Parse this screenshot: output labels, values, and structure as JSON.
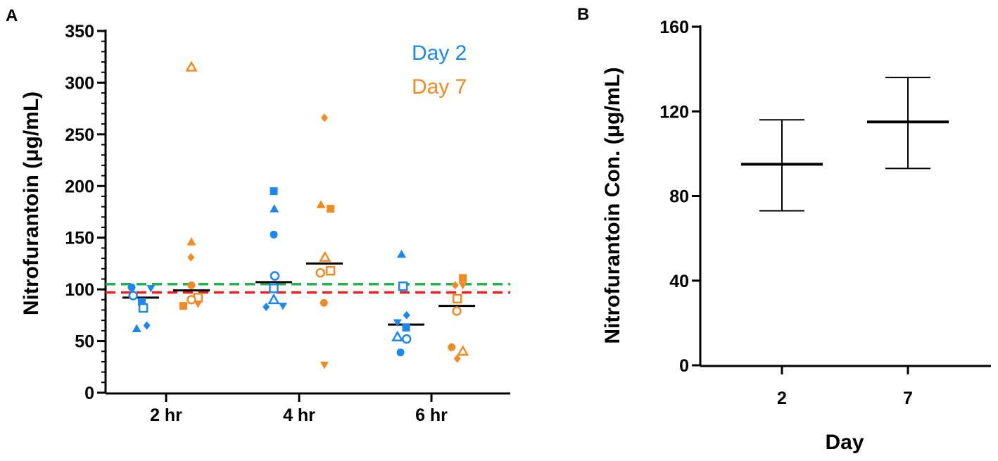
{
  "colors": {
    "day2": "#1b87f0",
    "day7": "#f28a22",
    "green": "#22b14c",
    "red": "#ee2222",
    "axis": "#000000"
  },
  "panel_labels": {
    "a": "A",
    "b": "B"
  },
  "chart_data": [
    {
      "id": "A",
      "type": "scatter",
      "title": "",
      "xlabel": "",
      "ylabel": "Nitrofurantoin (μg/mL)",
      "ylim": [
        0,
        350
      ],
      "yticks": [
        0,
        50,
        100,
        150,
        200,
        250,
        300,
        350
      ],
      "yticks_labels": [
        "0",
        "50",
        "100",
        "150",
        "200",
        "250",
        "300",
        "350"
      ],
      "categories": [
        "2 hr",
        "4 hr",
        "6 hr"
      ],
      "legend": [
        "Day 2",
        "Day 7"
      ],
      "reference_lines": [
        {
          "name": "green",
          "y": 105,
          "style": "dashed"
        },
        {
          "name": "red",
          "y": 97,
          "style": "dashed"
        }
      ],
      "series": [
        {
          "name": "Day 2",
          "means": [
            92,
            107,
            66
          ],
          "points": [
            {
              "cat": 0,
              "y": 102,
              "m": "circle",
              "o": -0.18
            },
            {
              "cat": 0,
              "y": 94,
              "m": "circle-open",
              "o": -0.15
            },
            {
              "cat": 0,
              "y": 62,
              "m": "triangle",
              "o": -0.08
            },
            {
              "cat": 0,
              "y": 88,
              "m": "square",
              "o": 0.02
            },
            {
              "cat": 0,
              "y": 82,
              "m": "square-open",
              "o": 0.05
            },
            {
              "cat": 0,
              "y": 65,
              "m": "diamond",
              "o": 0.12
            },
            {
              "cat": 0,
              "y": 101,
              "m": "triangle-down",
              "o": 0.2
            },
            {
              "cat": 1,
              "y": 195,
              "m": "square",
              "o": 0.0
            },
            {
              "cat": 1,
              "y": 178,
              "m": "triangle",
              "o": 0.01
            },
            {
              "cat": 1,
              "y": 153,
              "m": "circle",
              "o": 0.0
            },
            {
              "cat": 1,
              "y": 113,
              "m": "circle-open",
              "o": 0.02
            },
            {
              "cat": 1,
              "y": 101,
              "m": "square-open",
              "o": 0.0
            },
            {
              "cat": 1,
              "y": 90,
              "m": "triangle-open",
              "o": 0.0
            },
            {
              "cat": 1,
              "y": 83,
              "m": "diamond",
              "o": -0.15
            },
            {
              "cat": 1,
              "y": 84,
              "m": "triangle-down",
              "o": 0.18
            },
            {
              "cat": 2,
              "y": 134,
              "m": "triangle",
              "o": -0.09
            },
            {
              "cat": 2,
              "y": 103,
              "m": "square-open",
              "o": -0.06
            },
            {
              "cat": 2,
              "y": 75,
              "m": "diamond",
              "o": 0.01
            },
            {
              "cat": 2,
              "y": 68,
              "m": "triangle-down",
              "o": -0.17
            },
            {
              "cat": 2,
              "y": 63,
              "m": "square",
              "o": 0.0
            },
            {
              "cat": 2,
              "y": 54,
              "m": "triangle-open",
              "o": -0.17
            },
            {
              "cat": 2,
              "y": 52,
              "m": "circle-open",
              "o": 0.01
            },
            {
              "cat": 2,
              "y": 39,
              "m": "circle",
              "o": -0.11
            }
          ]
        },
        {
          "name": "Day 7",
          "means": [
            99,
            125,
            84
          ],
          "points": [
            {
              "cat": 0,
              "y": 315,
              "m": "triangle-open",
              "o": 0.0
            },
            {
              "cat": 0,
              "y": 146,
              "m": "triangle",
              "o": 0.0
            },
            {
              "cat": 0,
              "y": 131,
              "m": "diamond",
              "o": -0.01
            },
            {
              "cat": 0,
              "y": 104,
              "m": "circle",
              "o": 0.0
            },
            {
              "cat": 0,
              "y": 92,
              "m": "square-open",
              "o": 0.13
            },
            {
              "cat": 0,
              "y": 90,
              "m": "circle-open",
              "o": 0.0
            },
            {
              "cat": 0,
              "y": 84,
              "m": "square",
              "o": -0.16
            },
            {
              "cat": 0,
              "y": 86,
              "m": "triangle-down",
              "o": 0.13
            },
            {
              "cat": 1,
              "y": 266,
              "m": "diamond",
              "o": 0.0
            },
            {
              "cat": 1,
              "y": 182,
              "m": "triangle",
              "o": -0.07
            },
            {
              "cat": 1,
              "y": 178,
              "m": "square",
              "o": 0.12
            },
            {
              "cat": 1,
              "y": 131,
              "m": "triangle-open",
              "o": 0.01
            },
            {
              "cat": 1,
              "y": 118,
              "m": "square-open",
              "o": 0.12
            },
            {
              "cat": 1,
              "y": 116,
              "m": "circle-open",
              "o": -0.08
            },
            {
              "cat": 1,
              "y": 87,
              "m": "circle",
              "o": -0.01
            },
            {
              "cat": 1,
              "y": 27,
              "m": "triangle-down",
              "o": 0.0
            },
            {
              "cat": 2,
              "y": 111,
              "m": "square",
              "o": 0.12
            },
            {
              "cat": 2,
              "y": 104,
              "m": "diamond",
              "o": -0.03
            },
            {
              "cat": 2,
              "y": 104,
              "m": "triangle-down",
              "o": 0.12
            },
            {
              "cat": 2,
              "y": 91,
              "m": "square-open",
              "o": 0.01
            },
            {
              "cat": 2,
              "y": 79,
              "m": "circle-open",
              "o": 0.0
            },
            {
              "cat": 2,
              "y": 44,
              "m": "circle",
              "o": -0.1
            },
            {
              "cat": 2,
              "y": 40,
              "m": "triangle-open",
              "o": 0.12
            },
            {
              "cat": 2,
              "y": 33,
              "m": "diamond",
              "o": 0.01
            }
          ]
        }
      ]
    },
    {
      "id": "B",
      "type": "errorbar",
      "title": "",
      "xlabel": "Day",
      "ylabel": "Nitrofurantoin Con. (μg/mL)",
      "ylim": [
        0,
        160
      ],
      "yticks": [
        0,
        40,
        80,
        120,
        160
      ],
      "yticks_labels": [
        "0",
        "40",
        "80",
        "120",
        "160"
      ],
      "categories": [
        "2",
        "7"
      ],
      "means": [
        95,
        115
      ],
      "upper": [
        116,
        136
      ],
      "lower": [
        73,
        93
      ]
    }
  ]
}
